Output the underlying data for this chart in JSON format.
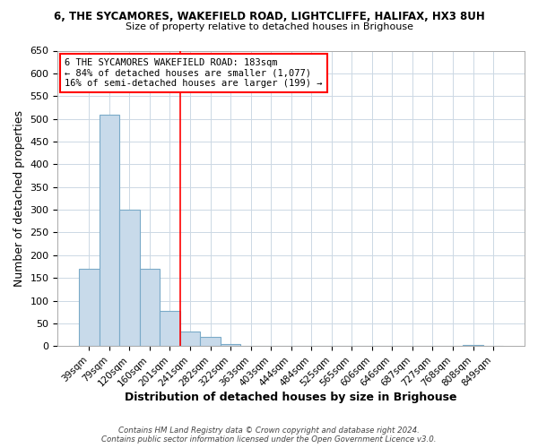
{
  "title": "6, THE SYCAMORES, WAKEFIELD ROAD, LIGHTCLIFFE, HALIFAX, HX3 8UH",
  "subtitle": "Size of property relative to detached houses in Brighouse",
  "xlabel": "Distribution of detached houses by size in Brighouse",
  "ylabel": "Number of detached properties",
  "bar_color": "#c8daea",
  "bar_edge_color": "#7aaac8",
  "categories": [
    "39sqm",
    "79sqm",
    "120sqm",
    "160sqm",
    "201sqm",
    "241sqm",
    "282sqm",
    "322sqm",
    "363sqm",
    "403sqm",
    "444sqm",
    "484sqm",
    "525sqm",
    "565sqm",
    "606sqm",
    "646sqm",
    "687sqm",
    "727sqm",
    "768sqm",
    "808sqm",
    "849sqm"
  ],
  "values": [
    170,
    510,
    300,
    170,
    78,
    32,
    20,
    5,
    0,
    0,
    0,
    0,
    0,
    0,
    0,
    0,
    0,
    0,
    0,
    3,
    0
  ],
  "ylim": [
    0,
    650
  ],
  "yticks": [
    0,
    50,
    100,
    150,
    200,
    250,
    300,
    350,
    400,
    450,
    500,
    550,
    600,
    650
  ],
  "annotation_line1": "6 THE SYCAMORES WAKEFIELD ROAD: 183sqm",
  "annotation_line2": "← 84% of detached houses are smaller (1,077)",
  "annotation_line3": "16% of semi-detached houses are larger (199) →",
  "property_bar_index": 4,
  "footer_line1": "Contains HM Land Registry data © Crown copyright and database right 2024.",
  "footer_line2": "Contains public sector information licensed under the Open Government Licence v3.0.",
  "background_color": "#ffffff",
  "grid_color": "#ccd8e4"
}
